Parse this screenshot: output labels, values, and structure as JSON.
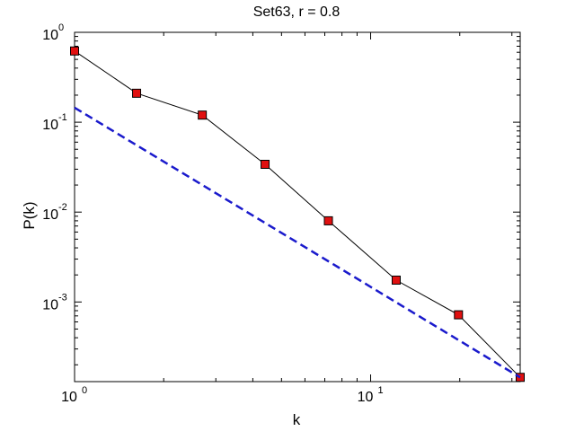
{
  "chart_data": {
    "type": "line",
    "title": "Set63, r = 0.8",
    "xlabel": "k",
    "ylabel": "P(k)",
    "xscale": "log",
    "yscale": "log",
    "xlim": [
      1,
      32
    ],
    "ylim": [
      0.00013,
      1
    ],
    "grid": false,
    "legend": "none",
    "x_ticks": [
      {
        "value": 1,
        "base": "10",
        "exp": "0"
      },
      {
        "value": 10,
        "base": "10",
        "exp": "1"
      }
    ],
    "y_ticks": [
      {
        "value": 1,
        "base": "10",
        "exp": "0"
      },
      {
        "value": 0.1,
        "base": "10",
        "exp": "-1"
      },
      {
        "value": 0.01,
        "base": "10",
        "exp": "-2"
      },
      {
        "value": 0.001,
        "base": "10",
        "exp": "-3"
      }
    ],
    "series": [
      {
        "style": "solid-with-square-markers",
        "color": "#000000",
        "marker_color": "#e01010",
        "x": [
          1.0,
          1.62,
          2.7,
          4.4,
          7.2,
          12.2,
          19.8,
          32.0
        ],
        "y": [
          0.62,
          0.21,
          0.12,
          0.034,
          0.008,
          0.00175,
          0.00072,
          0.000145
        ]
      },
      {
        "style": "dashed",
        "color": "#1a1acc",
        "x": [
          1.0,
          32.0
        ],
        "y": [
          0.145,
          0.000145
        ]
      }
    ]
  }
}
